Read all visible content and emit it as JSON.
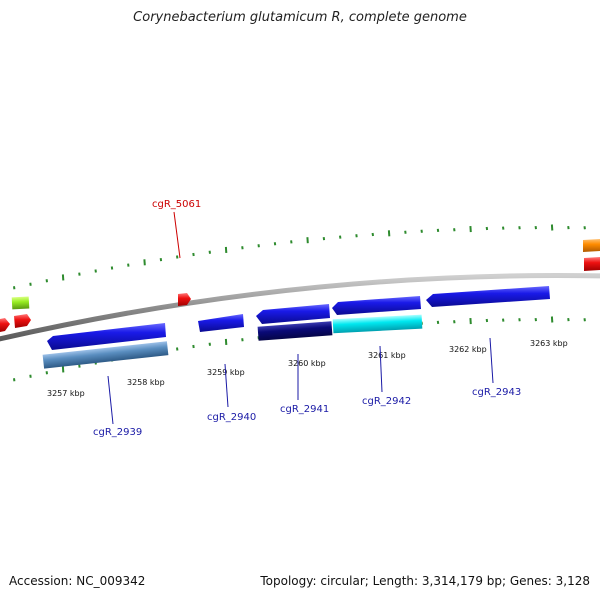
{
  "title": "Corynebacterium glutamicum R, complete genome",
  "footer": {
    "accession": "Accession: NC_009342",
    "summary": "Topology: circular; Length: 3,314,179 bp; Genes: 3,128"
  },
  "axis_labels": [
    "3257 kbp",
    "3258 kbp",
    "3259 kbp",
    "3260 kbp",
    "3261 kbp",
    "3262 kbp",
    "3263 kbp"
  ],
  "genes": [
    {
      "name": "cgR_2939",
      "color": "#1a1aa6"
    },
    {
      "name": "cgR_2940",
      "color": "#1a1aa6"
    },
    {
      "name": "cgR_2941",
      "color": "#1a1aa6"
    },
    {
      "name": "cgR_2942",
      "color": "#1a1aa6"
    },
    {
      "name": "cgR_2943",
      "color": "#1a1aa6"
    },
    {
      "name": "cgR_5061",
      "color": "#cc0000"
    }
  ],
  "colors": {
    "backbone": "#8c8c8c",
    "tick": "#2e8b2e",
    "gene_blue": "#1414e0",
    "gene_steel": "#5a8ec0",
    "gene_navy": "#0a0a78",
    "gene_cyan": "#00e8f0",
    "gene_red": "#ee1111",
    "gene_lime": "#99ee22",
    "gene_orange": "#ff8c00"
  }
}
